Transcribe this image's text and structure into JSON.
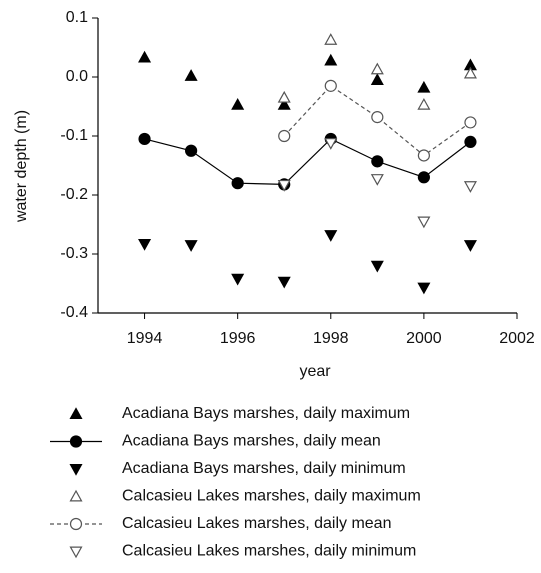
{
  "chart_data": {
    "type": "scatter",
    "x_label": "year",
    "y_label": "water depth (m)",
    "xlim": [
      1993,
      2002
    ],
    "xticks": [
      1994,
      1996,
      1998,
      2000,
      2002
    ],
    "ylim": [
      -0.4,
      0.1
    ],
    "yticks": [
      -0.4,
      -0.3,
      -0.2,
      -0.1,
      {
        "value": 0,
        "label": "0.0"
      },
      0.1
    ],
    "x": [
      1994,
      1995,
      1996,
      1997,
      1998,
      1999,
      2000,
      2001
    ],
    "series": [
      {
        "name": "Acadiana Bays marshes, daily maximum",
        "color": "#000000",
        "marker": "triangle-up",
        "filled": true,
        "line": "none",
        "values": [
          0.033,
          0.002,
          -0.047,
          -0.047,
          0.028,
          -0.005,
          -0.018,
          0.02
        ]
      },
      {
        "name": "Acadiana Bays marshes, daily mean",
        "color": "#000000",
        "marker": "circle",
        "filled": true,
        "line": "solid",
        "values": [
          -0.105,
          -0.125,
          -0.18,
          -0.182,
          -0.105,
          -0.143,
          -0.17,
          -0.11
        ]
      },
      {
        "name": "Acadiana Bays marshes, daily minimum",
        "color": "#000000",
        "marker": "triangle-down",
        "filled": true,
        "line": "none",
        "values": [
          -0.283,
          -0.285,
          -0.342,
          -0.347,
          -0.268,
          -0.32,
          -0.357,
          -0.285
        ]
      },
      {
        "name": "Calcasieu Lakes marshes, daily maximum",
        "color": "#555555",
        "marker": "triangle-up",
        "filled": false,
        "line": "none",
        "values": [
          null,
          null,
          null,
          -0.035,
          0.063,
          0.013,
          -0.047,
          0.006
        ]
      },
      {
        "name": "Calcasieu Lakes marshes, daily mean",
        "color": "#555555",
        "marker": "circle",
        "filled": false,
        "line": "dashed",
        "values": [
          null,
          null,
          null,
          -0.1,
          -0.015,
          -0.068,
          -0.133,
          -0.077
        ]
      },
      {
        "name": "Calcasieu Lakes marshes, daily minimum",
        "color": "#555555",
        "marker": "triangle-down",
        "filled": false,
        "line": "none",
        "values": [
          null,
          null,
          null,
          -0.183,
          -0.112,
          -0.173,
          -0.245,
          -0.185
        ]
      }
    ]
  }
}
